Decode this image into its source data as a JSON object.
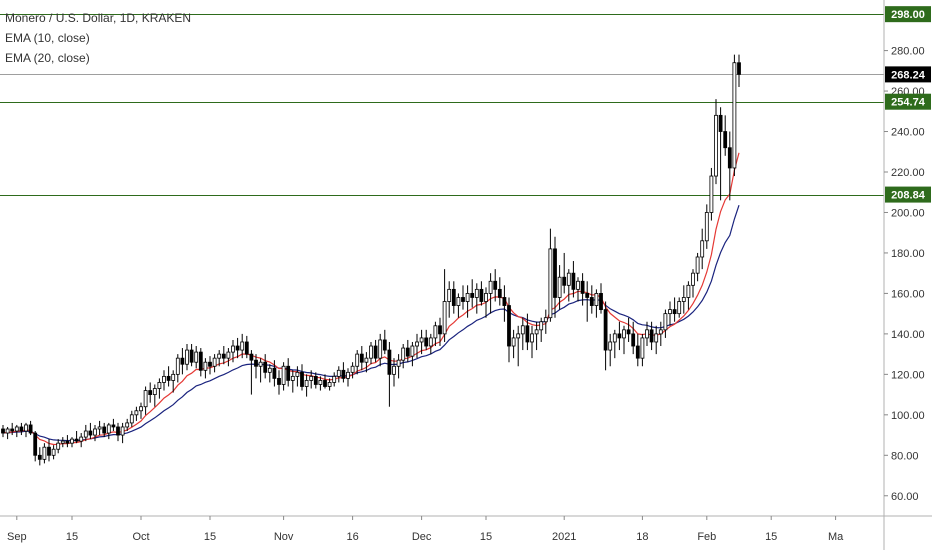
{
  "chart_data": {
    "type": "candlestick",
    "title": "Monero / U.S. Dollar, 1D, KRAKEN",
    "legend": [
      "EMA (10, close)",
      "EMA (20, close)"
    ],
    "ylim": [
      50,
      305
    ],
    "y_ticks": [
      60,
      80,
      100,
      120,
      140,
      160,
      180,
      200,
      220,
      240,
      260,
      280
    ],
    "y_tick_labels": [
      "60.00",
      "80.00",
      "100.00",
      "120.00",
      "140.00",
      "160.00",
      "180.00",
      "200.00",
      "220.00",
      "240.00",
      "260.00",
      "280.00"
    ],
    "x_labels": [
      {
        "day": 3,
        "label": "Sep"
      },
      {
        "day": 15,
        "label": "15"
      },
      {
        "day": 30,
        "label": "Oct"
      },
      {
        "day": 45,
        "label": "15"
      },
      {
        "day": 61,
        "label": "Nov"
      },
      {
        "day": 76,
        "label": "16"
      },
      {
        "day": 91,
        "label": "Dec"
      },
      {
        "day": 105,
        "label": "15"
      },
      {
        "day": 122,
        "label": "2021"
      },
      {
        "day": 139,
        "label": "18"
      },
      {
        "day": 153,
        "label": "Feb"
      },
      {
        "day": 167,
        "label": "15"
      },
      {
        "day": 181,
        "label": "Ma"
      }
    ],
    "horizontal_lines": [
      {
        "value": 298.0,
        "label": "298.00",
        "color": "#2e6b1c"
      },
      {
        "value": 254.74,
        "label": "254.74",
        "color": "#2e6b1c"
      },
      {
        "value": 208.84,
        "label": "208.84",
        "color": "#2e6b1c"
      }
    ],
    "last_price": {
      "value": 268.24,
      "label": "268.24",
      "color": "#000000"
    },
    "ema_colors": {
      "ema10": "#e53935",
      "ema20": "#1a237e"
    },
    "candle_colors": {
      "up_fill": "#ffffff",
      "down_fill": "#000000",
      "border": "#000000"
    },
    "candles": [
      [
        93,
        95,
        89,
        91
      ],
      [
        91,
        94,
        88,
        93
      ],
      [
        93,
        96,
        90,
        92
      ],
      [
        92,
        95,
        89,
        94
      ],
      [
        94,
        96,
        90,
        92
      ],
      [
        92,
        96,
        89,
        95
      ],
      [
        95,
        97,
        90,
        91
      ],
      [
        91,
        92,
        77,
        80
      ],
      [
        80,
        84,
        75,
        78
      ],
      [
        78,
        86,
        76,
        84
      ],
      [
        84,
        88,
        77,
        80
      ],
      [
        80,
        85,
        78,
        83
      ],
      [
        83,
        88,
        81,
        86
      ],
      [
        86,
        89,
        84,
        87
      ],
      [
        87,
        90,
        84,
        86
      ],
      [
        86,
        89,
        84,
        88
      ],
      [
        88,
        92,
        86,
        87
      ],
      [
        87,
        91,
        84,
        89
      ],
      [
        89,
        95,
        87,
        92
      ],
      [
        92,
        96,
        88,
        90
      ],
      [
        90,
        95,
        87,
        93
      ],
      [
        93,
        97,
        90,
        94
      ],
      [
        94,
        96,
        89,
        91
      ],
      [
        91,
        96,
        88,
        95
      ],
      [
        95,
        98,
        92,
        94
      ],
      [
        94,
        96,
        87,
        90
      ],
      [
        90,
        96,
        86,
        94
      ],
      [
        94,
        98,
        92,
        96
      ],
      [
        96,
        102,
        94,
        100
      ],
      [
        100,
        104,
        97,
        102
      ],
      [
        102,
        106,
        98,
        104
      ],
      [
        104,
        114,
        100,
        112
      ],
      [
        112,
        116,
        106,
        110
      ],
      [
        110,
        115,
        104,
        113
      ],
      [
        113,
        118,
        108,
        116
      ],
      [
        116,
        122,
        112,
        119
      ],
      [
        119,
        124,
        114,
        117
      ],
      [
        117,
        122,
        111,
        120
      ],
      [
        120,
        130,
        116,
        128
      ],
      [
        128,
        133,
        120,
        125
      ],
      [
        125,
        135,
        122,
        132
      ],
      [
        132,
        135,
        124,
        126
      ],
      [
        126,
        134,
        123,
        131
      ],
      [
        131,
        133,
        119,
        122
      ],
      [
        122,
        128,
        118,
        126
      ],
      [
        126,
        129,
        120,
        124
      ],
      [
        124,
        130,
        121,
        128
      ],
      [
        128,
        132,
        124,
        130
      ],
      [
        130,
        134,
        125,
        128
      ],
      [
        128,
        133,
        124,
        131
      ],
      [
        131,
        137,
        126,
        134
      ],
      [
        134,
        138,
        128,
        132
      ],
      [
        132,
        140,
        128,
        136
      ],
      [
        136,
        139,
        128,
        130
      ],
      [
        130,
        132,
        110,
        127
      ],
      [
        127,
        130,
        118,
        124
      ],
      [
        124,
        128,
        116,
        126
      ],
      [
        126,
        130,
        118,
        121
      ],
      [
        121,
        125,
        116,
        123
      ],
      [
        123,
        127,
        114,
        118
      ],
      [
        118,
        122,
        110,
        115
      ],
      [
        115,
        126,
        112,
        124
      ],
      [
        124,
        128,
        114,
        117
      ],
      [
        117,
        122,
        111,
        119
      ],
      [
        119,
        124,
        114,
        121
      ],
      [
        121,
        125,
        112,
        114
      ],
      [
        114,
        120,
        109,
        117
      ],
      [
        117,
        122,
        113,
        119
      ],
      [
        119,
        121,
        113,
        115
      ],
      [
        115,
        119,
        112,
        117
      ],
      [
        117,
        120,
        113,
        114
      ],
      [
        114,
        118,
        112,
        116
      ],
      [
        116,
        121,
        114,
        119
      ],
      [
        119,
        124,
        116,
        122
      ],
      [
        122,
        126,
        116,
        118
      ],
      [
        118,
        123,
        114,
        121
      ],
      [
        121,
        126,
        118,
        124
      ],
      [
        124,
        132,
        120,
        130
      ],
      [
        130,
        134,
        122,
        126
      ],
      [
        126,
        131,
        121,
        128
      ],
      [
        128,
        136,
        125,
        134
      ],
      [
        134,
        137,
        126,
        128
      ],
      [
        128,
        140,
        124,
        137
      ],
      [
        137,
        142,
        130,
        132
      ],
      [
        132,
        136,
        104,
        120
      ],
      [
        120,
        128,
        114,
        124
      ],
      [
        124,
        130,
        118,
        127
      ],
      [
        127,
        135,
        123,
        133
      ],
      [
        133,
        137,
        126,
        129
      ],
      [
        129,
        136,
        124,
        134
      ],
      [
        134,
        140,
        128,
        136
      ],
      [
        136,
        142,
        130,
        138
      ],
      [
        138,
        142,
        132,
        134
      ],
      [
        134,
        140,
        130,
        138
      ],
      [
        138,
        146,
        134,
        144
      ],
      [
        144,
        148,
        134,
        140
      ],
      [
        140,
        172,
        136,
        156
      ],
      [
        156,
        166,
        148,
        162
      ],
      [
        162,
        166,
        150,
        154
      ],
      [
        154,
        160,
        148,
        158
      ],
      [
        158,
        164,
        152,
        156
      ],
      [
        156,
        164,
        148,
        160
      ],
      [
        160,
        167,
        153,
        158
      ],
      [
        158,
        165,
        150,
        162
      ],
      [
        162,
        166,
        154,
        156
      ],
      [
        156,
        163,
        148,
        160
      ],
      [
        160,
        170,
        150,
        166
      ],
      [
        166,
        172,
        156,
        162
      ],
      [
        162,
        168,
        154,
        158
      ],
      [
        158,
        164,
        146,
        154
      ],
      [
        154,
        158,
        126,
        134
      ],
      [
        134,
        142,
        128,
        138
      ],
      [
        138,
        144,
        124,
        140
      ],
      [
        140,
        148,
        132,
        144
      ],
      [
        144,
        150,
        132,
        136
      ],
      [
        136,
        144,
        128,
        140
      ],
      [
        140,
        146,
        132,
        142
      ],
      [
        142,
        148,
        136,
        146
      ],
      [
        146,
        152,
        140,
        148
      ],
      [
        148,
        192,
        146,
        182
      ],
      [
        182,
        188,
        148,
        158
      ],
      [
        158,
        174,
        152,
        168
      ],
      [
        168,
        180,
        160,
        164
      ],
      [
        164,
        172,
        156,
        170
      ],
      [
        170,
        176,
        158,
        162
      ],
      [
        162,
        168,
        156,
        166
      ],
      [
        166,
        170,
        154,
        160
      ],
      [
        160,
        166,
        146,
        158
      ],
      [
        158,
        164,
        150,
        154
      ],
      [
        154,
        162,
        148,
        160
      ],
      [
        160,
        165,
        150,
        152
      ],
      [
        152,
        156,
        122,
        132
      ],
      [
        132,
        140,
        124,
        136
      ],
      [
        136,
        142,
        128,
        140
      ],
      [
        140,
        146,
        132,
        138
      ],
      [
        138,
        144,
        130,
        142
      ],
      [
        142,
        148,
        136,
        140
      ],
      [
        140,
        146,
        130,
        134
      ],
      [
        134,
        140,
        124,
        128
      ],
      [
        128,
        140,
        124,
        138
      ],
      [
        138,
        146,
        134,
        142
      ],
      [
        142,
        146,
        132,
        136
      ],
      [
        136,
        144,
        130,
        140
      ],
      [
        140,
        146,
        134,
        142
      ],
      [
        142,
        152,
        138,
        150
      ],
      [
        150,
        156,
        144,
        152
      ],
      [
        152,
        158,
        146,
        150
      ],
      [
        150,
        158,
        148,
        156
      ],
      [
        156,
        164,
        150,
        158
      ],
      [
        158,
        166,
        152,
        164
      ],
      [
        164,
        172,
        158,
        170
      ],
      [
        170,
        180,
        166,
        178
      ],
      [
        178,
        192,
        172,
        186
      ],
      [
        186,
        204,
        182,
        200
      ],
      [
        200,
        222,
        196,
        218
      ],
      [
        218,
        256,
        214,
        248
      ],
      [
        248,
        252,
        206,
        240
      ],
      [
        240,
        248,
        228,
        232
      ],
      [
        232,
        240,
        206,
        222
      ],
      [
        222,
        278,
        218,
        274
      ],
      [
        274,
        278,
        262,
        268.24
      ]
    ]
  }
}
